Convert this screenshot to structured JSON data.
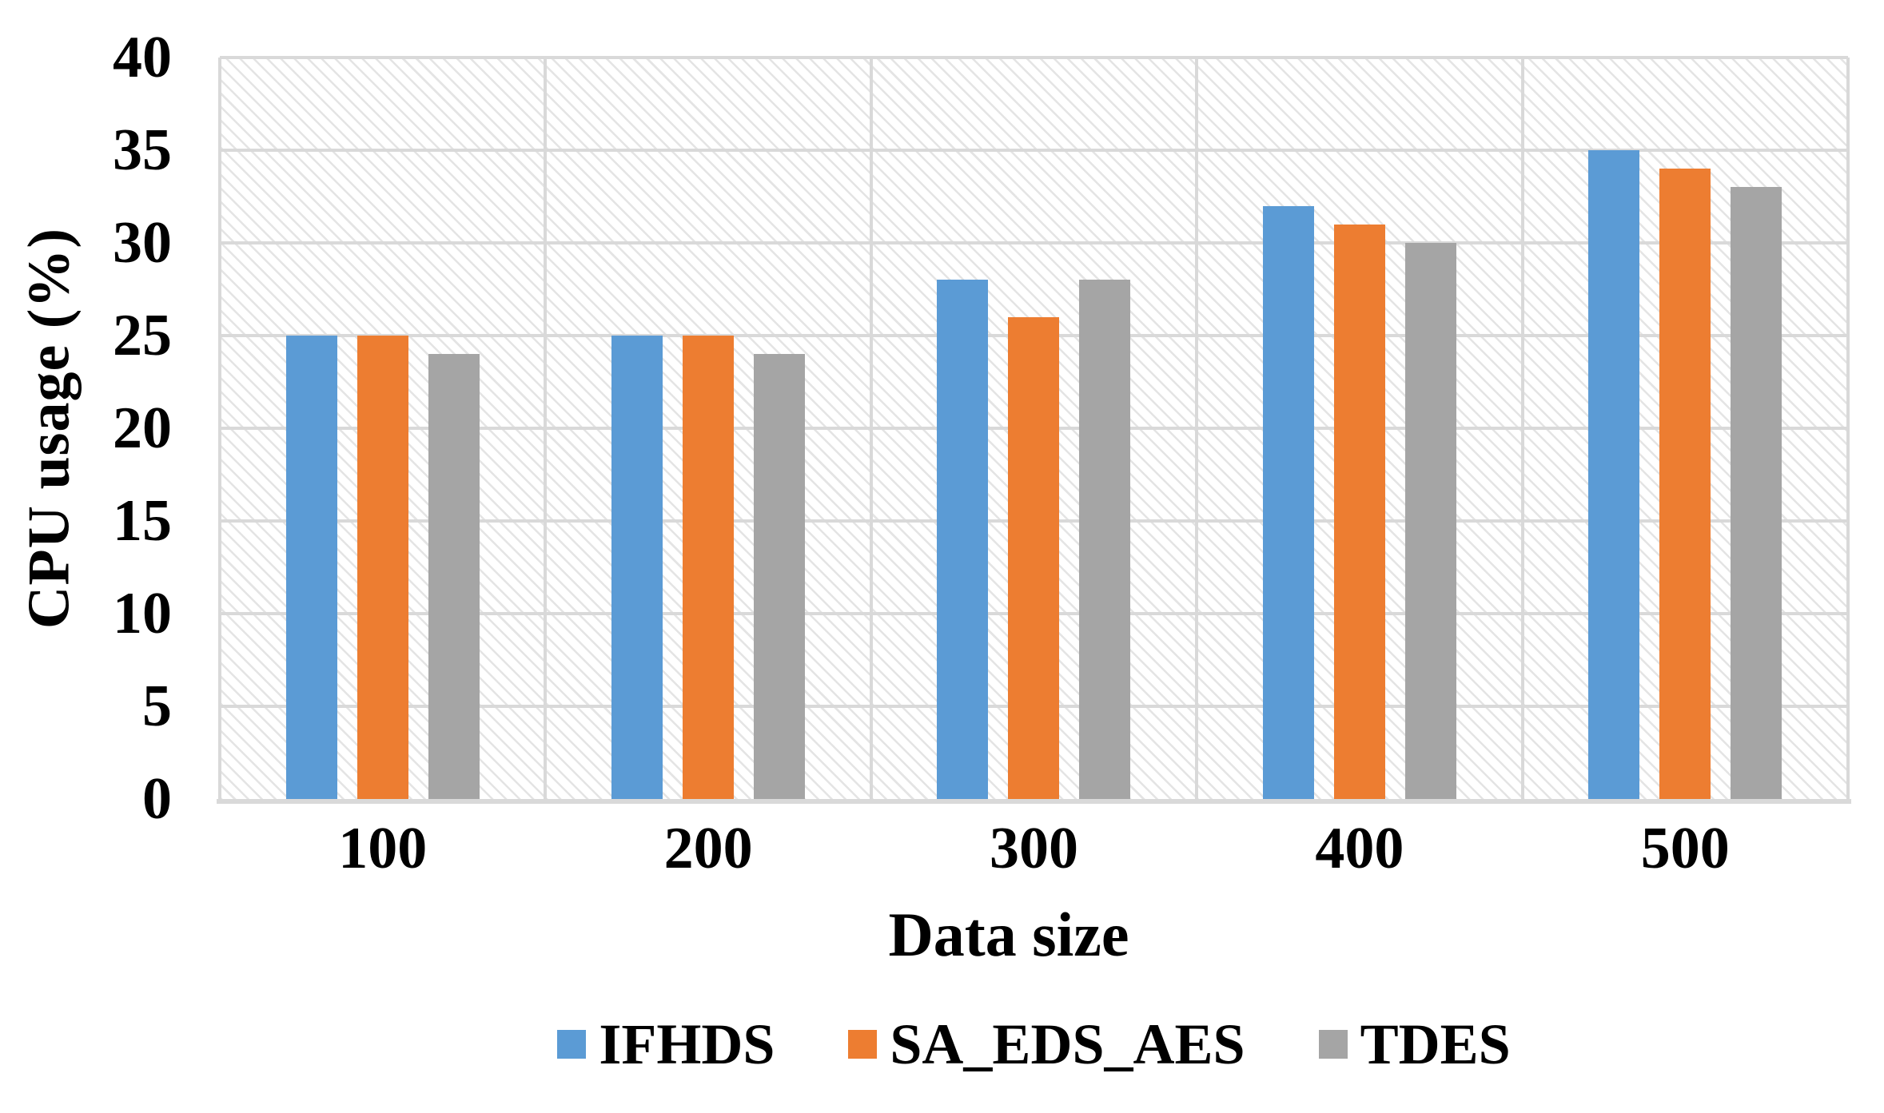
{
  "chart_data": {
    "type": "bar",
    "title": "",
    "categories": [
      "100",
      "200",
      "300",
      "400",
      "500"
    ],
    "series": [
      {
        "name": "IFHDS",
        "color": "#5B9BD5",
        "values": [
          25,
          25,
          28,
          32,
          35
        ]
      },
      {
        "name": "SA_EDS_AES",
        "color": "#ED7D31",
        "values": [
          25,
          25,
          26,
          31,
          34
        ]
      },
      {
        "name": "TDES",
        "color": "#A5A5A5",
        "values": [
          24,
          24,
          28,
          30,
          33
        ]
      }
    ],
    "xlabel": "Data size",
    "ylabel": "CPU usage (%)",
    "ylim": [
      0,
      40
    ],
    "yticks": [
      0,
      5,
      10,
      15,
      20,
      25,
      30,
      35,
      40
    ],
    "grid": {
      "horizontal": true,
      "vertical_category_boundaries": true
    },
    "legend_position": "bottom",
    "plot_background": "light-gray diagonal hatch",
    "gridline_color": "#D9D9D9",
    "text_color": "#000000"
  }
}
